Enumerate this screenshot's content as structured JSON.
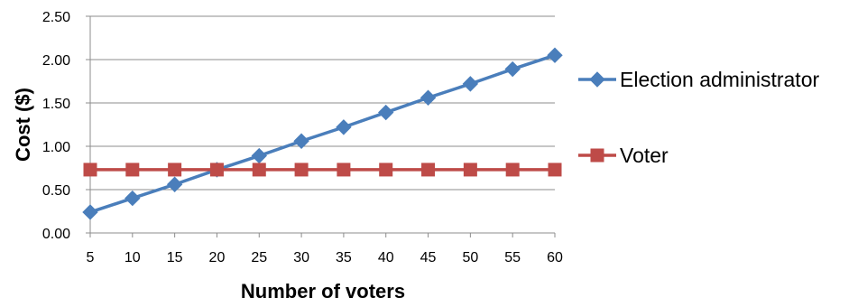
{
  "chart_data": {
    "type": "line",
    "title": "",
    "xlabel": "Number of voters",
    "ylabel": "Cost ($)",
    "categories": [
      5,
      10,
      15,
      20,
      25,
      30,
      35,
      40,
      45,
      50,
      55,
      60
    ],
    "y_tick_labels": [
      "0.00",
      "0.50",
      "1.00",
      "1.50",
      "2.00",
      "2.50"
    ],
    "ylim": [
      0,
      2.5
    ],
    "y_grid": true,
    "x_grid": false,
    "legend_position": "right",
    "series": [
      {
        "name": "Election administrator",
        "color": "#4a7ebb",
        "marker": "diamond",
        "values": [
          0.24,
          0.4,
          0.56,
          0.73,
          0.89,
          1.06,
          1.22,
          1.39,
          1.56,
          1.72,
          1.89,
          2.05
        ]
      },
      {
        "name": "Voter",
        "color": "#be4b48",
        "marker": "square",
        "values": [
          0.73,
          0.73,
          0.73,
          0.73,
          0.73,
          0.73,
          0.73,
          0.73,
          0.73,
          0.73,
          0.73,
          0.73
        ]
      }
    ]
  }
}
